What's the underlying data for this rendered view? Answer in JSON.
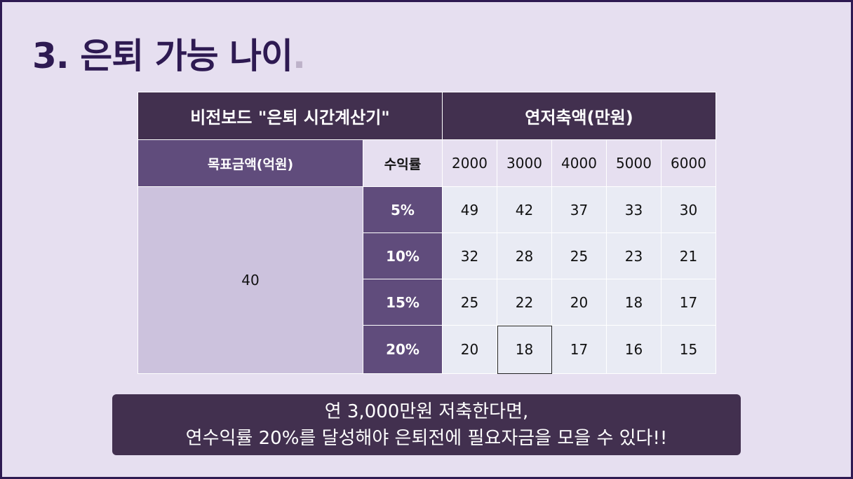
{
  "title": {
    "text": "3. 은퇴 가능 나이",
    "dot": "."
  },
  "table": {
    "header_left": "비전보드 \"은퇴 시간계산기\"",
    "header_right": "연저축액(만원)",
    "goal_label": "목표금액(억원)",
    "rate_label": "수익률",
    "savings": [
      "2000",
      "3000",
      "4000",
      "5000",
      "6000"
    ],
    "goal_value": "40",
    "rows": [
      {
        "rate": "5%",
        "values": [
          "49",
          "42",
          "37",
          "33",
          "30"
        ]
      },
      {
        "rate": "10%",
        "values": [
          "32",
          "28",
          "25",
          "23",
          "21"
        ]
      },
      {
        "rate": "15%",
        "values": [
          "25",
          "22",
          "20",
          "18",
          "17"
        ]
      },
      {
        "rate": "20%",
        "values": [
          "20",
          "18",
          "17",
          "16",
          "15"
        ]
      }
    ]
  },
  "note": {
    "line1": "연 3,000만원 저축한다면,",
    "line2": "연수익률 20%를 달성해야 은퇴전에 필요자금을 모을 수 있다!!"
  },
  "colors": {
    "background": "#e6dff0",
    "dark_purple": "#42304f",
    "mid_purple": "#604c7c",
    "light_purple": "#ccc2dd",
    "cell": "#e9ebf4",
    "title": "#2e1a52"
  }
}
